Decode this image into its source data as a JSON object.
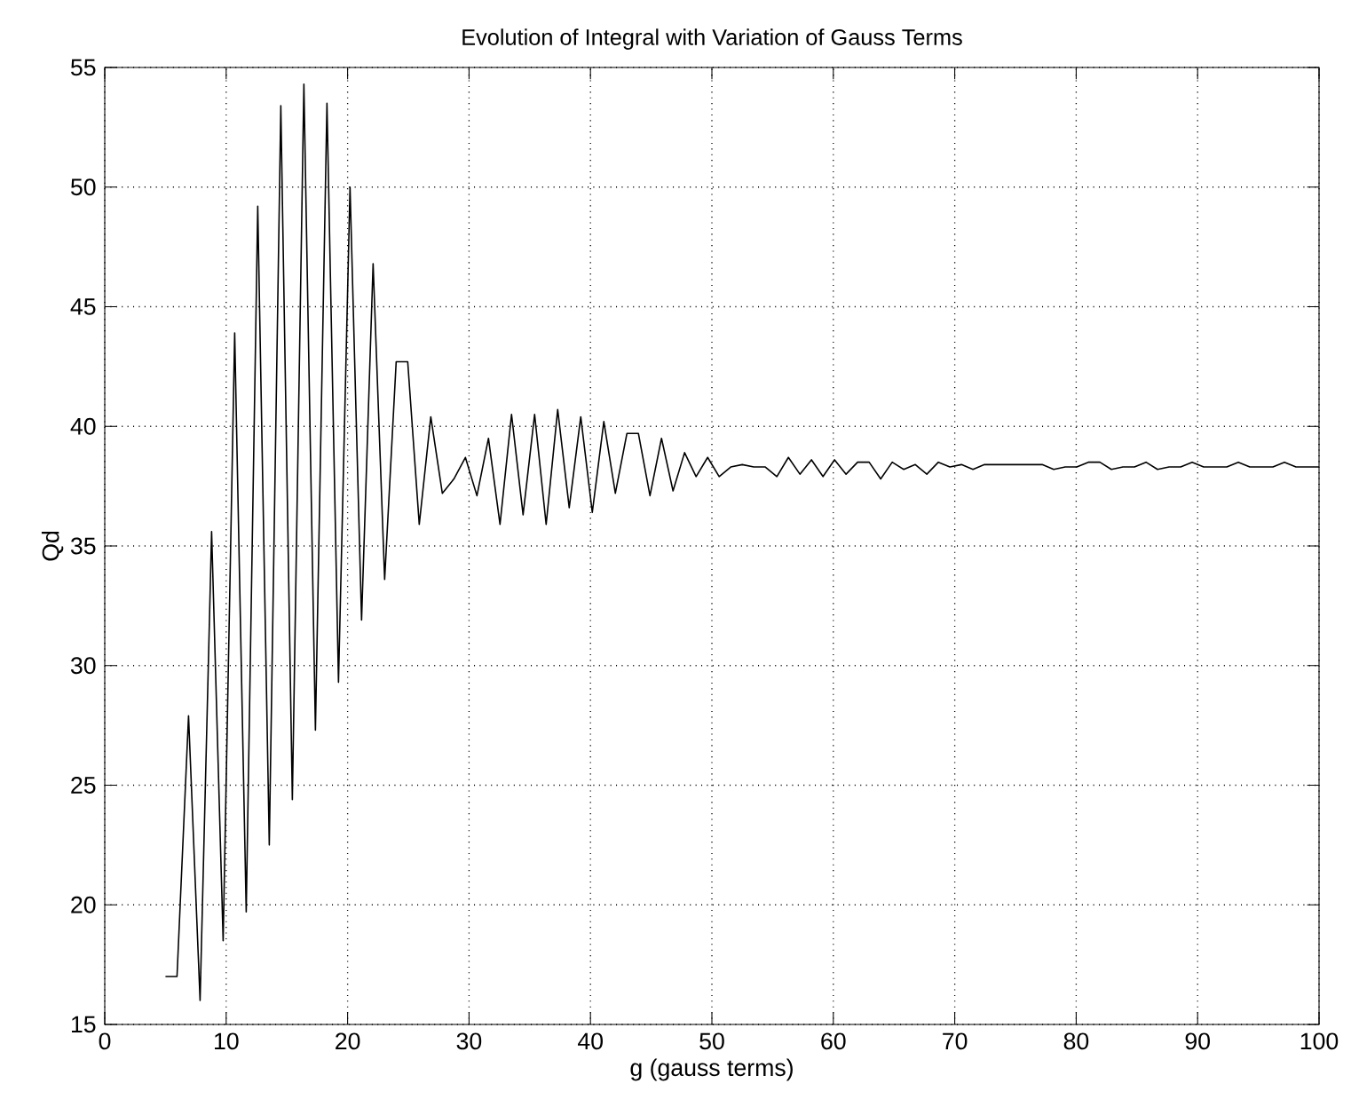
{
  "chart_data": {
    "type": "line",
    "title": "Evolution of Integral with Variation of Gauss Terms",
    "xlabel": "g (gauss terms)",
    "ylabel": "Qd",
    "x": [
      5,
      5.95,
      6.9,
      7.85,
      8.8,
      9.75,
      10.7,
      11.65,
      12.6,
      13.55,
      14.5,
      15.45,
      16.4,
      17.35,
      18.3,
      19.25,
      20.2,
      21.15,
      22.1,
      23.05,
      24,
      24.95,
      25.9,
      26.85,
      27.8,
      28.75,
      29.7,
      30.65,
      31.6,
      32.55,
      33.5,
      34.45,
      35.4,
      36.35,
      37.3,
      38.25,
      39.2,
      40.15,
      41.1,
      42.05,
      43,
      43.95,
      44.9,
      45.85,
      46.8,
      47.75,
      48.7,
      49.65,
      50.6,
      51.55,
      52.5,
      53.45,
      54.4,
      55.35,
      56.3,
      57.25,
      58.2,
      59.15,
      60.1,
      61.05,
      62,
      62.95,
      63.9,
      64.85,
      65.8,
      66.75,
      67.7,
      68.65,
      69.6,
      70.55,
      71.5,
      72.45,
      73.4,
      74.35,
      75.3,
      76.25,
      77.2,
      78.15,
      79.1,
      80.05,
      81,
      81.95,
      82.9,
      83.85,
      84.8,
      85.75,
      86.7,
      87.65,
      88.6,
      89.55,
      90.5,
      91.45,
      92.4,
      93.35,
      94.3,
      95.25,
      96.2,
      97.15,
      98.1,
      99.05,
      100
    ],
    "values": [
      17.0,
      17.0,
      27.9,
      16.0,
      35.6,
      18.5,
      43.9,
      19.7,
      49.2,
      22.5,
      53.4,
      24.4,
      54.3,
      27.3,
      53.5,
      29.3,
      50.0,
      31.9,
      46.8,
      33.6,
      42.7,
      42.7,
      35.9,
      40.4,
      37.2,
      37.8,
      38.7,
      37.1,
      39.5,
      35.9,
      40.5,
      36.3,
      40.5,
      35.9,
      40.7,
      36.6,
      40.4,
      36.4,
      40.2,
      37.2,
      39.7,
      39.7,
      37.1,
      39.5,
      37.3,
      38.9,
      37.9,
      38.7,
      37.9,
      38.3,
      38.4,
      38.3,
      38.3,
      37.9,
      38.7,
      38.0,
      38.6,
      37.9,
      38.6,
      38.0,
      38.5,
      38.5,
      37.8,
      38.5,
      38.2,
      38.4,
      38.0,
      38.5,
      38.3,
      38.4,
      38.2,
      38.4,
      38.4,
      38.4,
      38.4,
      38.4,
      38.4,
      38.2,
      38.3,
      38.3,
      38.5,
      38.5,
      38.2,
      38.3,
      38.3,
      38.5,
      38.2,
      38.3,
      38.3,
      38.5,
      38.3,
      38.3,
      38.3,
      38.5,
      38.3,
      38.3,
      38.3,
      38.5,
      38.3,
      38.3,
      38.3
    ],
    "color": "#000000",
    "xlim": [
      0,
      100
    ],
    "ylim": [
      15,
      55
    ],
    "xticks": [
      0,
      10,
      20,
      30,
      40,
      50,
      60,
      70,
      80,
      90,
      100
    ],
    "yticks": [
      15,
      20,
      25,
      30,
      35,
      40,
      45,
      50,
      55
    ],
    "grid": true
  }
}
